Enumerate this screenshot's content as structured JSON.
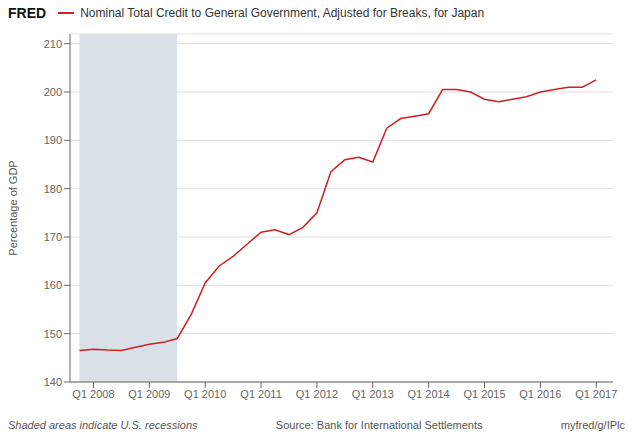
{
  "chart_data": {
    "type": "line",
    "title": "Nominal Total Credit to General Government, Adjusted for Breaks, for Japan",
    "y_label": "Percentage of GDP",
    "annotations": [
      "FRED",
      "Shaded areas indicate U.S. recessions",
      "Source: Bank for International Settlements",
      "myfred/g/IPlc"
    ],
    "x": [
      2007.75,
      2008.0,
      2008.25,
      2008.5,
      2008.75,
      2009.0,
      2009.25,
      2009.5,
      2009.75,
      2010.0,
      2010.25,
      2010.5,
      2010.75,
      2011.0,
      2011.25,
      2011.5,
      2011.75,
      2012.0,
      2012.25,
      2012.5,
      2012.75,
      2013.0,
      2013.25,
      2013.5,
      2013.75,
      2014.0,
      2014.25,
      2014.5,
      2014.75,
      2015.0,
      2015.25,
      2015.5,
      2015.75,
      2016.0,
      2016.25,
      2016.5,
      2016.75,
      2017.0
    ],
    "values": [
      146.5,
      146.8,
      146.6,
      146.5,
      147.2,
      147.8,
      148.2,
      149.0,
      154.0,
      160.5,
      164.0,
      166.0,
      168.5,
      171.0,
      171.5,
      170.5,
      172.0,
      175.0,
      183.5,
      186.0,
      186.5,
      185.5,
      192.5,
      194.5,
      195.0,
      195.5,
      200.5,
      200.5,
      200.0,
      198.5,
      198.0,
      198.5,
      199.0,
      200.0,
      200.5,
      201.0,
      201.0,
      202.5
    ],
    "color": "#cc2222",
    "shaded": {
      "x": [
        2007.75,
        2009.5
      ],
      "color": "#dae0e8"
    },
    "xlim": [
      2007.58,
      2017.3
    ],
    "xticks": [
      {
        "value": 2008.0,
        "label": "Q1 2008"
      },
      {
        "value": 2009.0,
        "label": "Q1 2009"
      },
      {
        "value": 2010.0,
        "label": "Q1 2010"
      },
      {
        "value": 2011.0,
        "label": "Q1 2011"
      },
      {
        "value": 2012.0,
        "label": "Q1 2012"
      },
      {
        "value": 2013.0,
        "label": "Q1 2013"
      },
      {
        "value": 2014.0,
        "label": "Q1 2014"
      },
      {
        "value": 2015.0,
        "label": "Q1 2015"
      },
      {
        "value": 2016.0,
        "label": "Q1 2016"
      },
      {
        "value": 2017.0,
        "label": "Q1 2017"
      }
    ],
    "ylim": [
      140,
      212
    ],
    "yticks": [
      140,
      150,
      160,
      170,
      180,
      190,
      200,
      210
    ],
    "grid": true
  }
}
